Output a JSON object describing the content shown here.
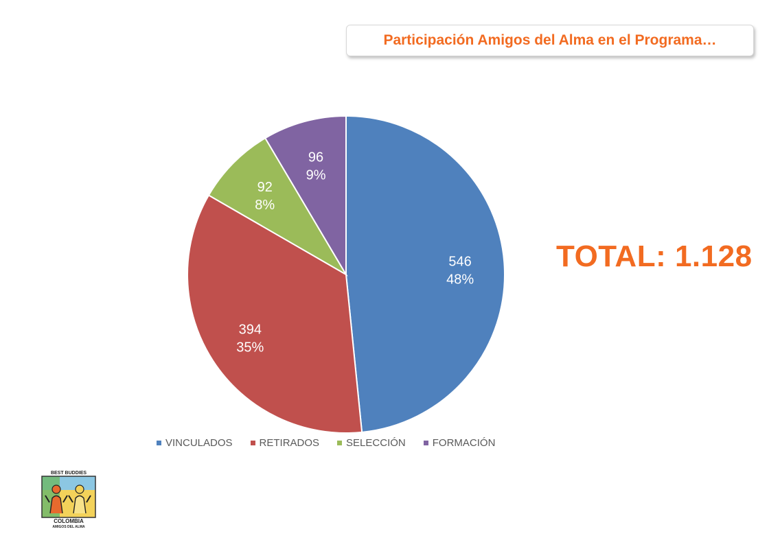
{
  "title": "Participación Amigos del Alma en el Programa…",
  "total_text": "TOTAL: 1.128",
  "colors": {
    "accent": "#f26b21",
    "vinculados": "#4f81bd",
    "retirados": "#c0504d",
    "seleccion": "#9bbb59",
    "formacion": "#8064a2"
  },
  "chart_data": {
    "type": "pie",
    "slices": [
      {
        "label": "VINCULADOS",
        "value": 546,
        "percent": "48%",
        "color": "#4f81bd"
      },
      {
        "label": "RETIRADOS",
        "value": 394,
        "percent": "35%",
        "color": "#c0504d"
      },
      {
        "label": "SELECCIÓN",
        "value": 92,
        "percent": "8%",
        "color": "#9bbb59"
      },
      {
        "label": "FORMACIÓN",
        "value": 96,
        "percent": "9%",
        "color": "#8064a2"
      }
    ],
    "legend_position": "bottom"
  },
  "legend": [
    {
      "label": "VINCULADOS",
      "color": "#4f81bd"
    },
    {
      "label": "RETIRADOS",
      "color": "#c0504d"
    },
    {
      "label": "SELECCIÓN",
      "color": "#9bbb59"
    },
    {
      "label": "FORMACIÓN",
      "color": "#8064a2"
    }
  ],
  "logo": {
    "name": "best-buddies-colombia-logo",
    "top_text": "BEST BUDDIES",
    "middle_text": "COLOMBIA",
    "bottom_text": "AMIGOS DEL ALMA"
  }
}
